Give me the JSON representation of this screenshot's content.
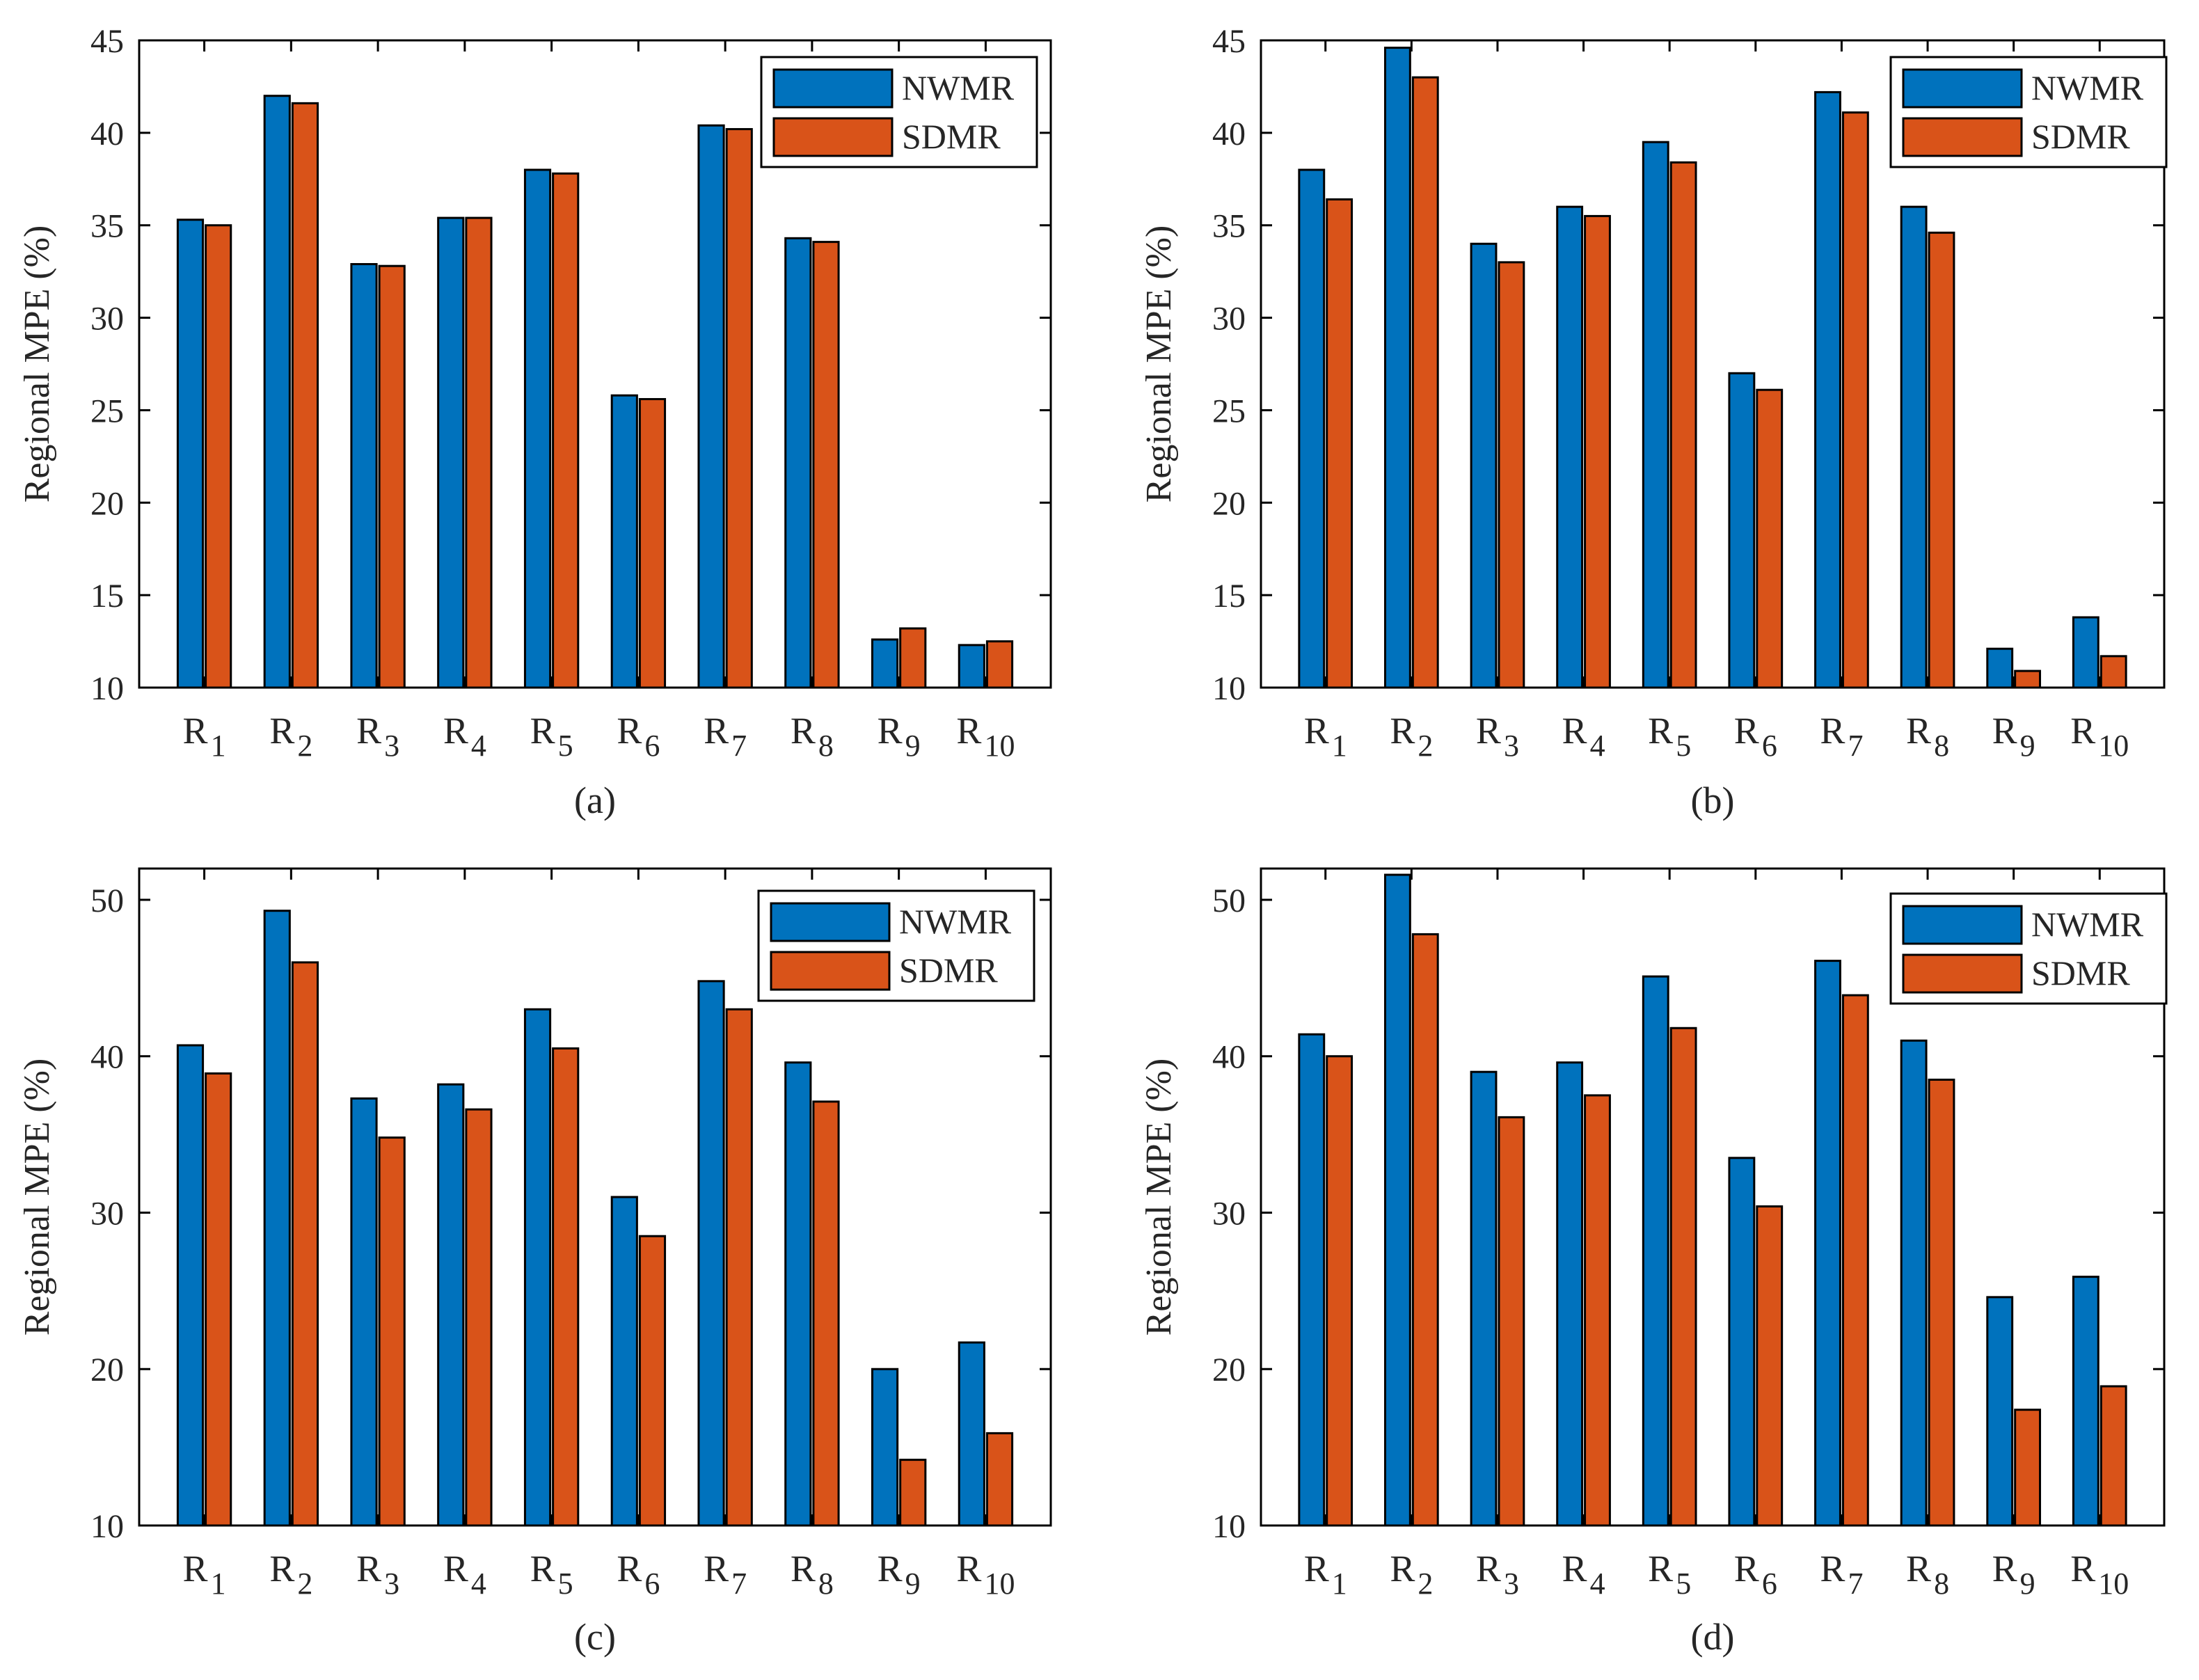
{
  "figure": {
    "nwmr_color": "#0072bd",
    "sdmr_color": "#d95319",
    "edge_color": "#000000"
  },
  "chart_data": [
    {
      "type": "bar",
      "panel_label": "(a)",
      "ylabel": "Regional MPE (%)",
      "xlabel": "",
      "ylim": [
        10,
        45
      ],
      "yticks": [
        10,
        15,
        20,
        25,
        30,
        35,
        40,
        45
      ],
      "categories": [
        {
          "base": "R",
          "sub": "1"
        },
        {
          "base": "R",
          "sub": "2"
        },
        {
          "base": "R",
          "sub": "3"
        },
        {
          "base": "R",
          "sub": "4"
        },
        {
          "base": "R",
          "sub": "5"
        },
        {
          "base": "R",
          "sub": "6"
        },
        {
          "base": "R",
          "sub": "7"
        },
        {
          "base": "R",
          "sub": "8"
        },
        {
          "base": "R",
          "sub": "9"
        },
        {
          "base": "R",
          "sub": "10"
        }
      ],
      "legend": "top-right",
      "series": [
        {
          "name": "NWMR",
          "values": [
            35.3,
            42.0,
            32.9,
            35.4,
            38.0,
            25.8,
            40.4,
            34.3,
            12.6,
            12.3
          ]
        },
        {
          "name": "SDMR",
          "values": [
            35.0,
            41.6,
            32.8,
            35.4,
            37.8,
            25.6,
            40.2,
            34.1,
            13.2,
            12.5
          ]
        }
      ]
    },
    {
      "type": "bar",
      "panel_label": "(b)",
      "ylabel": "Regional MPE (%)",
      "xlabel": "",
      "ylim": [
        10,
        45
      ],
      "yticks": [
        10,
        15,
        20,
        25,
        30,
        35,
        40,
        45
      ],
      "categories": [
        {
          "base": "R",
          "sub": "1"
        },
        {
          "base": "R",
          "sub": "2"
        },
        {
          "base": "R",
          "sub": "3"
        },
        {
          "base": "R",
          "sub": "4"
        },
        {
          "base": "R",
          "sub": "5"
        },
        {
          "base": "R",
          "sub": "6"
        },
        {
          "base": "R",
          "sub": "7"
        },
        {
          "base": "R",
          "sub": "8"
        },
        {
          "base": "R",
          "sub": "9"
        },
        {
          "base": "R",
          "sub": "10"
        }
      ],
      "legend": "top-right",
      "series": [
        {
          "name": "NWMR",
          "values": [
            38.0,
            44.6,
            34.0,
            36.0,
            39.5,
            27.0,
            42.2,
            36.0,
            12.1,
            13.8
          ]
        },
        {
          "name": "SDMR",
          "values": [
            36.4,
            43.0,
            33.0,
            35.5,
            38.4,
            26.1,
            41.1,
            34.6,
            10.9,
            11.7
          ]
        }
      ]
    },
    {
      "type": "bar",
      "panel_label": "(c)",
      "ylabel": "Regional MPE (%)",
      "xlabel": "",
      "ylim": [
        10,
        52
      ],
      "yticks": [
        10,
        20,
        30,
        40,
        50
      ],
      "categories": [
        {
          "base": "R",
          "sub": "1"
        },
        {
          "base": "R",
          "sub": "2"
        },
        {
          "base": "R",
          "sub": "3"
        },
        {
          "base": "R",
          "sub": "4"
        },
        {
          "base": "R",
          "sub": "5"
        },
        {
          "base": "R",
          "sub": "6"
        },
        {
          "base": "R",
          "sub": "7"
        },
        {
          "base": "R",
          "sub": "8"
        },
        {
          "base": "R",
          "sub": "9"
        },
        {
          "base": "R",
          "sub": "10"
        }
      ],
      "legend": "top-right",
      "series": [
        {
          "name": "NWMR",
          "values": [
            40.7,
            49.3,
            37.3,
            38.2,
            43.0,
            31.0,
            44.8,
            39.6,
            20.0,
            21.7
          ]
        },
        {
          "name": "SDMR",
          "values": [
            38.9,
            46.0,
            34.8,
            36.6,
            40.5,
            28.5,
            43.0,
            37.1,
            14.2,
            15.9
          ]
        }
      ]
    },
    {
      "type": "bar",
      "panel_label": "(d)",
      "ylabel": "Regional MPE (%)",
      "xlabel": "",
      "ylim": [
        10,
        52
      ],
      "yticks": [
        10,
        20,
        30,
        40,
        50
      ],
      "categories": [
        {
          "base": "R",
          "sub": "1"
        },
        {
          "base": "R",
          "sub": "2"
        },
        {
          "base": "R",
          "sub": "3"
        },
        {
          "base": "R",
          "sub": "4"
        },
        {
          "base": "R",
          "sub": "5"
        },
        {
          "base": "R",
          "sub": "6"
        },
        {
          "base": "R",
          "sub": "7"
        },
        {
          "base": "R",
          "sub": "8"
        },
        {
          "base": "R",
          "sub": "9"
        },
        {
          "base": "R",
          "sub": "10"
        }
      ],
      "legend": "top-right",
      "series": [
        {
          "name": "NWMR",
          "values": [
            41.4,
            51.6,
            39.0,
            39.6,
            45.1,
            33.5,
            46.1,
            41.0,
            24.6,
            25.9
          ]
        },
        {
          "name": "SDMR",
          "values": [
            40.0,
            47.8,
            36.1,
            37.5,
            41.8,
            30.4,
            43.9,
            38.5,
            17.4,
            18.9
          ]
        }
      ]
    }
  ]
}
